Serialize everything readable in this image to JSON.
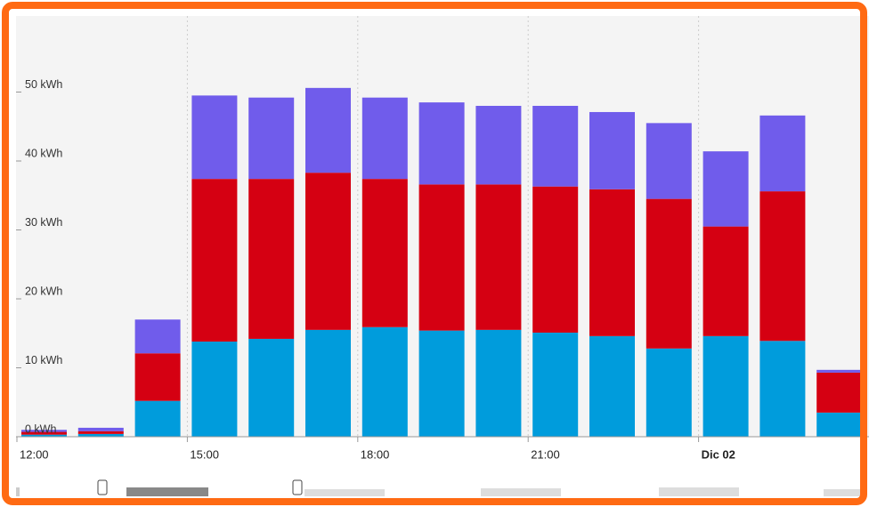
{
  "chart_data": {
    "type": "stacked_bar",
    "categories": [
      "12:00",
      null,
      null,
      "15:00",
      null,
      null,
      "18:00",
      null,
      null,
      "21:00",
      null,
      null,
      "Dic 02",
      null,
      null
    ],
    "series": [
      {
        "color": "#009cdc",
        "values": [
          0.3,
          0.4,
          5.2,
          13.8,
          14.2,
          15.5,
          15.9,
          15.4,
          15.5,
          15.1,
          14.6,
          12.8,
          14.6,
          13.9,
          3.5
        ]
      },
      {
        "color": "#d50012",
        "values": [
          0.4,
          0.4,
          6.9,
          23.6,
          23.2,
          22.8,
          21.5,
          21.2,
          21.1,
          21.2,
          21.3,
          21.7,
          15.9,
          21.7,
          5.8
        ]
      },
      {
        "color": "#705ceb",
        "values": [
          0.3,
          0.5,
          4.9,
          12.1,
          11.8,
          12.3,
          11.8,
          11.9,
          11.4,
          11.7,
          11.2,
          11.0,
          10.9,
          11.0,
          0.4
        ]
      }
    ],
    "ylim": [
      0,
      60
    ],
    "yticks": [
      {
        "value": 0,
        "label": "0 kWh"
      },
      {
        "value": 10,
        "label": "10 kWh"
      },
      {
        "value": 20,
        "label": "20 kWh"
      },
      {
        "value": 30,
        "label": "30 kWh"
      },
      {
        "value": 40,
        "label": "40 kWh"
      },
      {
        "value": 50,
        "label": "50 kWh"
      }
    ]
  }
}
